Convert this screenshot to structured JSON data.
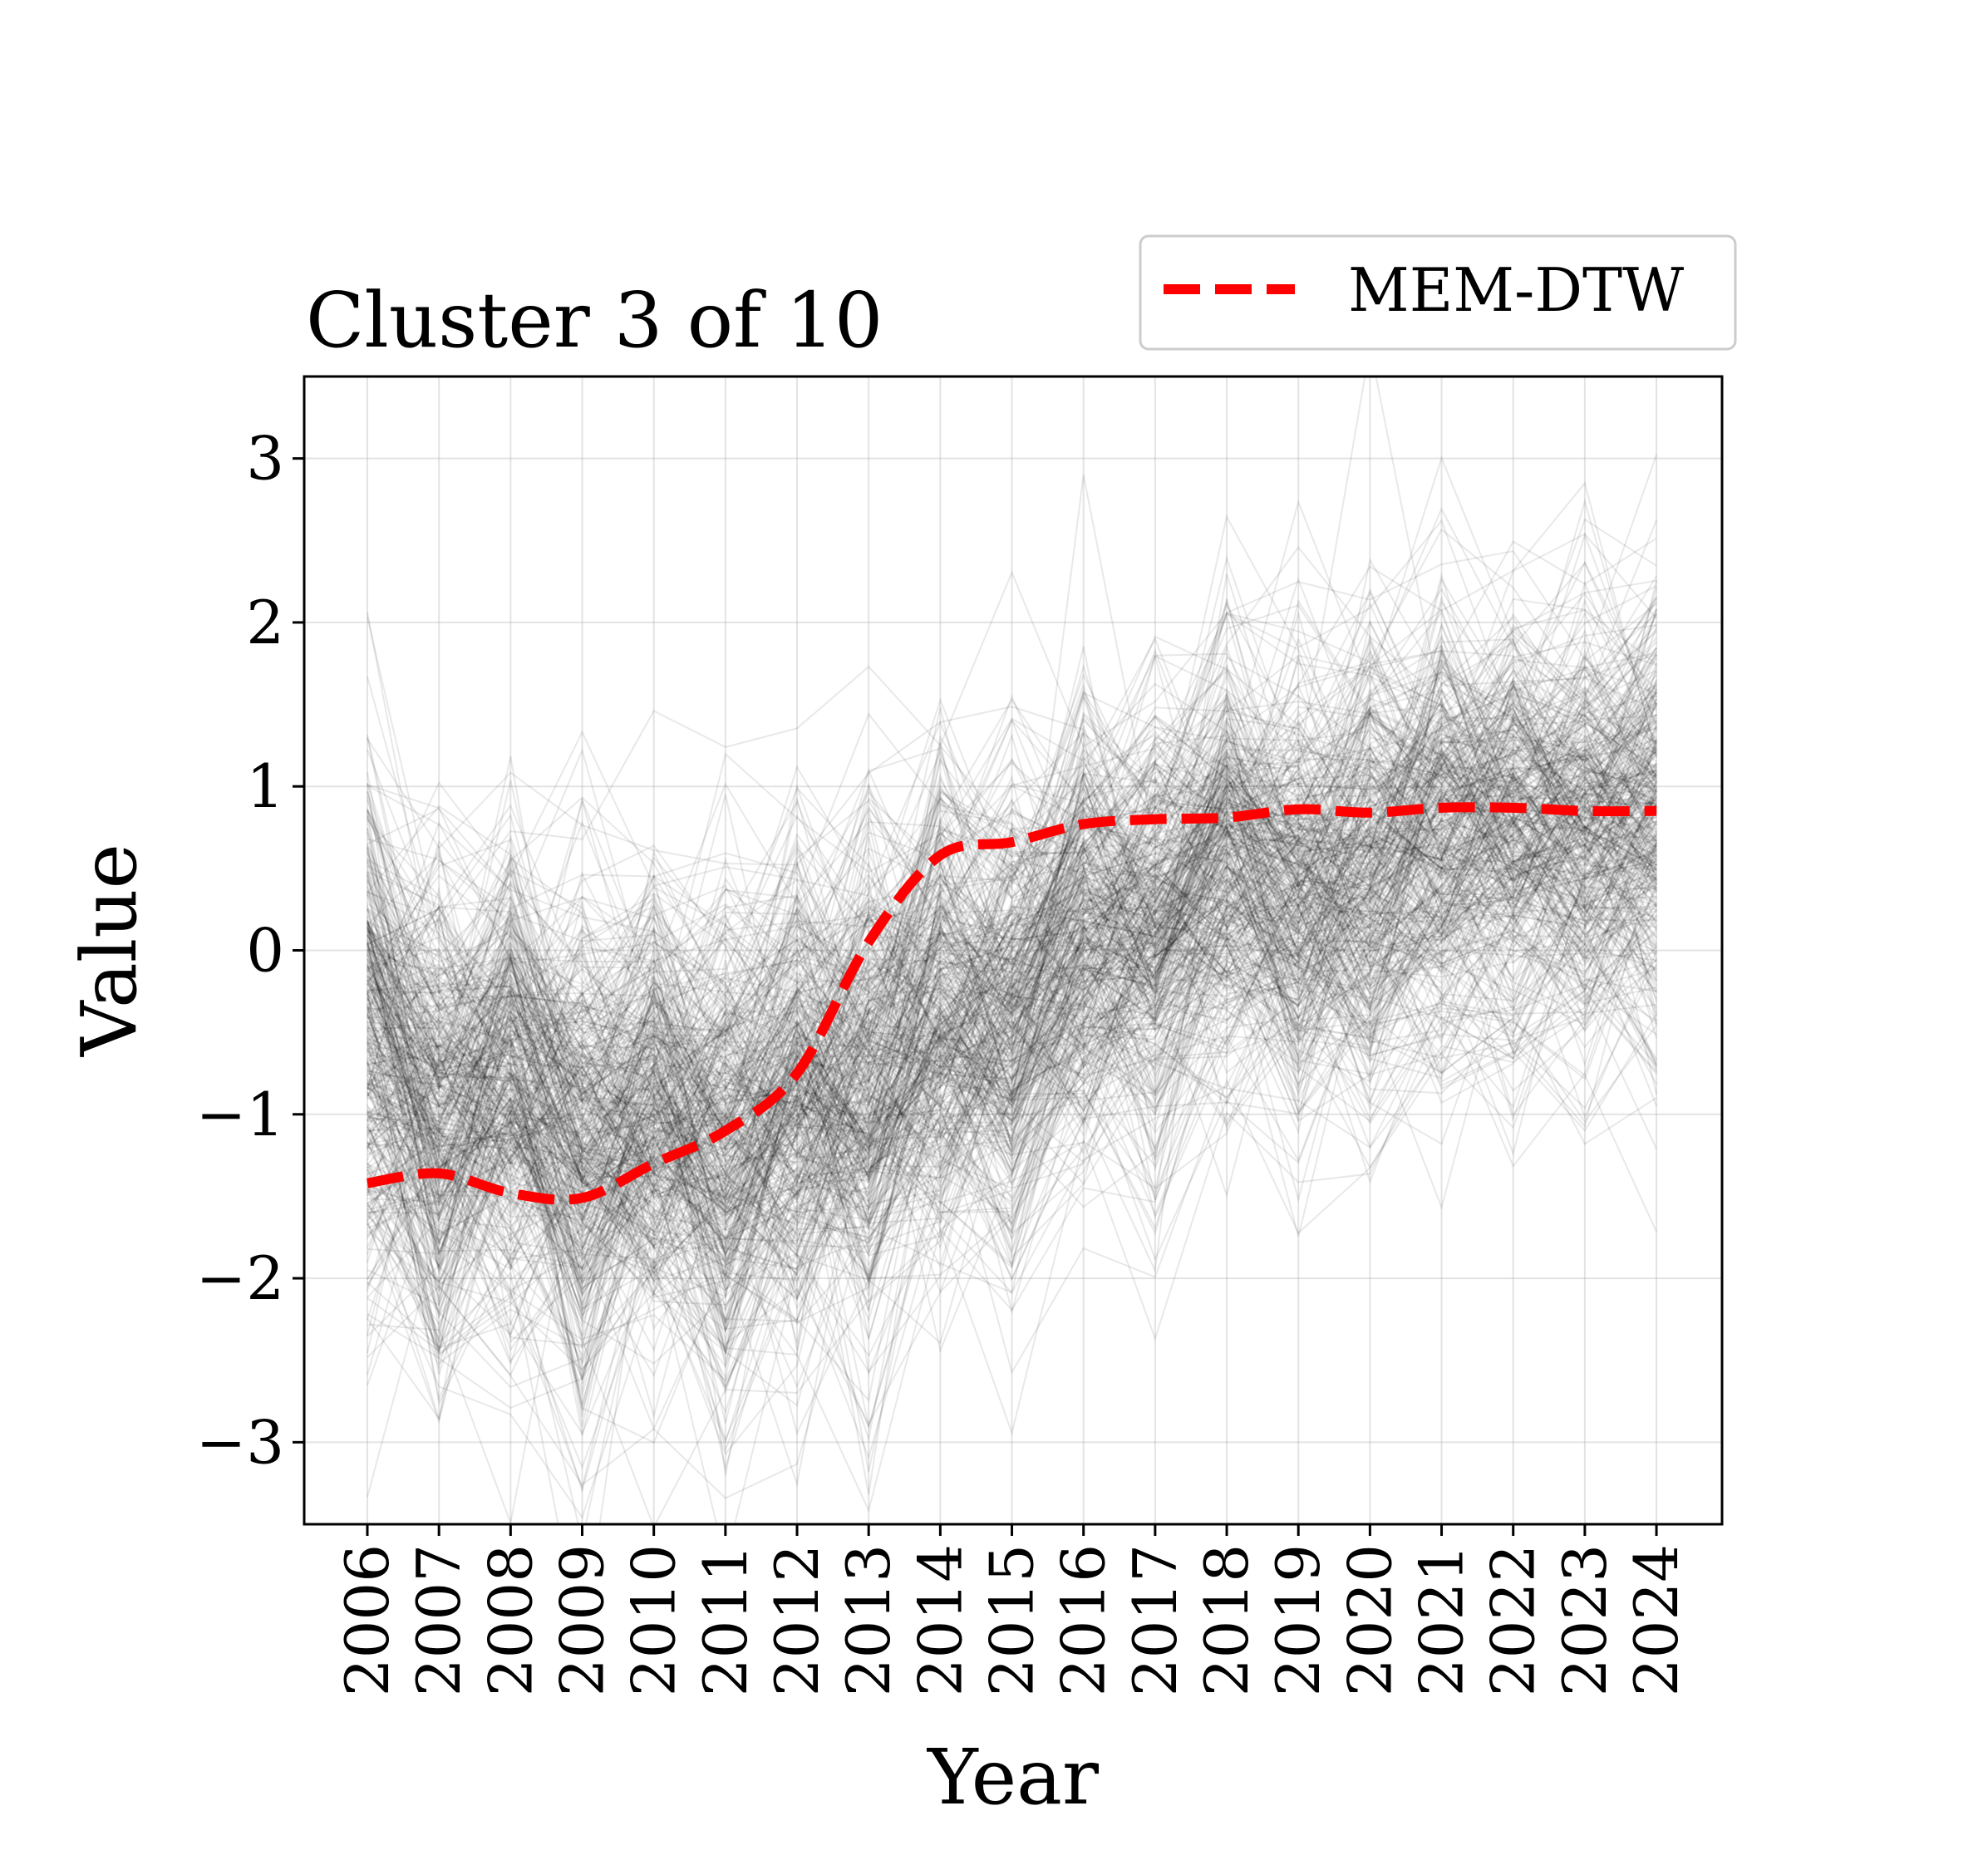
{
  "chart_data": {
    "type": "line",
    "title": "Cluster 3 of 10",
    "xlabel": "Year",
    "ylabel": "Value",
    "categories": [
      "2006",
      "2007",
      "2008",
      "2009",
      "2010",
      "2011",
      "2012",
      "2013",
      "2014",
      "2015",
      "2016",
      "2017",
      "2018",
      "2019",
      "2020",
      "2021",
      "2022",
      "2023",
      "2024"
    ],
    "ylim": [
      -3.5,
      3.5
    ],
    "yticks": [
      -3,
      -2,
      -1,
      0,
      1,
      2,
      3
    ],
    "ytick_labels": [
      "−3",
      "−2",
      "−1",
      "0",
      "1",
      "2",
      "3"
    ],
    "grid": true,
    "legend": {
      "position": "top-right, outside above axes",
      "entries": [
        "MEM-DTW"
      ]
    },
    "series": [
      {
        "name": "MEM-DTW",
        "style": "dashed",
        "color": "#ff0000",
        "values": [
          -1.42,
          -1.36,
          -1.48,
          -1.51,
          -1.3,
          -1.1,
          -0.75,
          0.05,
          0.58,
          0.66,
          0.77,
          0.8,
          0.81,
          0.86,
          0.84,
          0.87,
          0.87,
          0.85,
          0.85
        ]
      }
    ],
    "background_traces": {
      "description_color": "#000000",
      "count_rendered": 420,
      "mean_profile": [
        -0.55,
        -0.7,
        -0.8,
        -0.9,
        -0.95,
        -0.95,
        -0.85,
        -0.6,
        -0.4,
        -0.2,
        0.1,
        0.35,
        0.5,
        0.6,
        0.45,
        0.6,
        0.7,
        0.75,
        0.8
      ]
    }
  }
}
